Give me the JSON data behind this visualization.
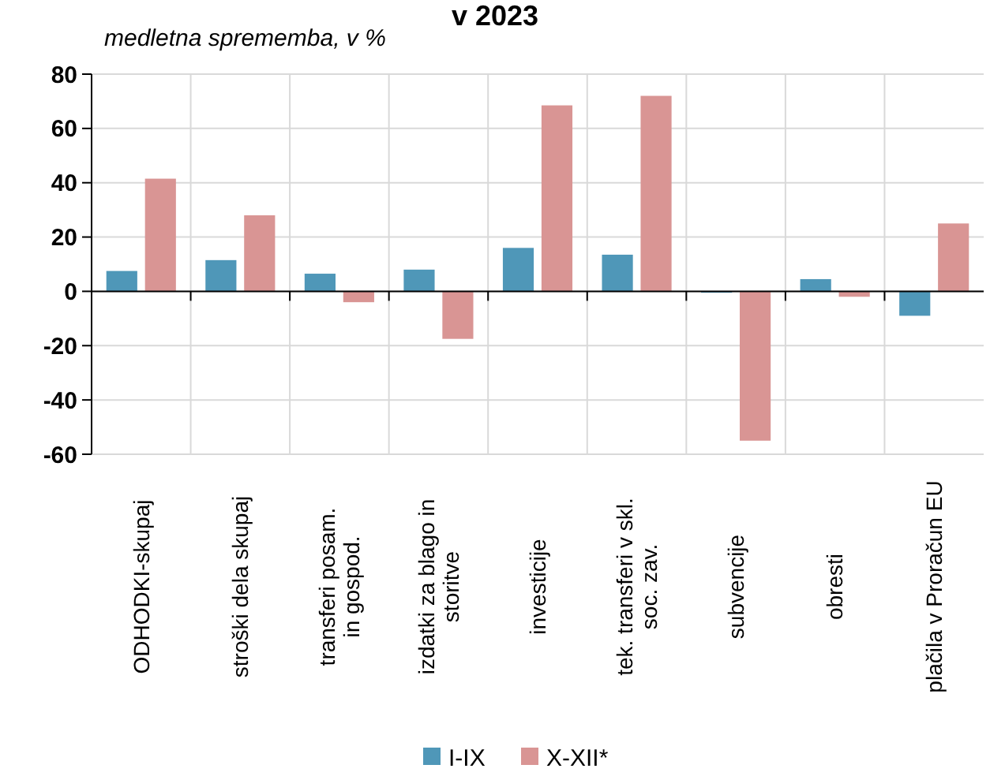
{
  "chart_data": {
    "type": "bar",
    "title": "v 2023",
    "subtitle": "medletna sprememba, v %",
    "categories": [
      "ODHODKI-skupaj",
      "stroški dela skupaj",
      "transferi posam.\nin gospod.",
      "izdatki za blago in\nstoritve",
      "investicije",
      "tek. transferi v skl.\nsoc. zav.",
      "subvencije",
      "obresti",
      "plačila v Proračun EU"
    ],
    "series": [
      {
        "name": "I-IX",
        "color": "#4f97b8",
        "values": [
          7.5,
          11.5,
          6.5,
          8,
          16,
          13.5,
          -0.5,
          4.5,
          -9
        ]
      },
      {
        "name": "X-XII*",
        "color": "#d99594",
        "values": [
          41.5,
          28,
          -4,
          -17.5,
          68.5,
          72,
          -55,
          -2,
          25
        ]
      }
    ],
    "ylim": [
      -60,
      80
    ],
    "yticks": [
      -60,
      -40,
      -20,
      0,
      20,
      40,
      60,
      80
    ],
    "grid": true,
    "legend": "bottom"
  }
}
